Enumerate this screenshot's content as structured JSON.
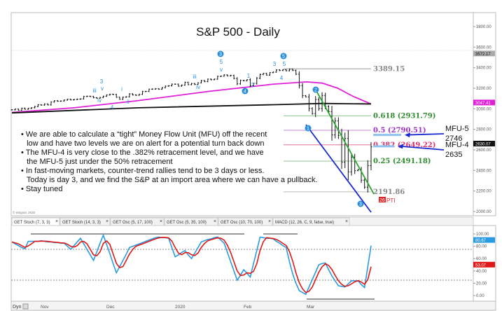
{
  "chart_data": [
    {
      "type": "bar",
      "style": "ohlc",
      "title": "S&P 500 - Daily",
      "ylim": [
        2000,
        3900
      ],
      "y_ticks": [
        "3800.00",
        "3600.00",
        "3400.00",
        "3200.00",
        "3000.00",
        "2800.00",
        "2600.00",
        "2400.00",
        "2200.00",
        "2000.00"
      ],
      "x_first_date": "2019-10-16",
      "x_last_date": "2020-03-26",
      "closes": [
        2990,
        2997,
        2986,
        3006,
        2996,
        3004,
        3010,
        3022,
        3039,
        3036,
        3047,
        3038,
        3066,
        3078,
        3074,
        3076,
        3085,
        3093,
        3087,
        3091,
        3094,
        3097,
        3120,
        3122,
        3120,
        3108,
        3103,
        3110,
        3122,
        3134,
        3141,
        3140,
        3113,
        3093,
        3113,
        3117,
        3145,
        3135,
        3132,
        3141,
        3168,
        3169,
        3191,
        3192,
        3195,
        3191,
        3205,
        3221,
        3224,
        3240,
        3240,
        3221,
        3231,
        3258,
        3235,
        3246,
        3237,
        3253,
        3275,
        3265,
        3289,
        3283,
        3289,
        3316,
        3318,
        3330,
        3321,
        3325,
        3295,
        3243,
        3276,
        3273,
        3283,
        3226,
        3248,
        3298,
        3334,
        3345,
        3328,
        3352,
        3357,
        3379,
        3373,
        3380,
        3370,
        3386,
        3373,
        3337,
        3226,
        3128,
        3116,
        3003,
        2954,
        3090,
        3003,
        3130,
        3023,
        2972,
        2746,
        2882,
        2741,
        2480,
        2711,
        2386,
        2529,
        2398,
        2409,
        2305,
        2237,
        2447,
        2630
      ],
      "moving_averages": [
        {
          "color": "#e020d8",
          "points": [
            [
              "2019-10-16",
              2965
            ],
            [
              "2019-11-13",
              3010
            ],
            [
              "2019-12-12",
              3080
            ],
            [
              "2020-01-13",
              3170
            ],
            [
              "2020-02-11",
              3240
            ],
            [
              "2020-02-26",
              3262
            ],
            [
              "2020-03-04",
              3250
            ],
            [
              "2020-03-11",
              3200
            ],
            [
              "2020-03-18",
              3120
            ],
            [
              "2020-03-26",
              3047
            ]
          ]
        },
        {
          "color": "#111111",
          "points": [
            [
              "2019-10-16",
              2960
            ],
            [
              "2019-12-12",
              3010
            ],
            [
              "2020-02-11",
              3040
            ],
            [
              "2020-03-04",
              3052
            ],
            [
              "2020-03-26",
              3047
            ]
          ]
        }
      ],
      "price_badges": [
        {
          "label": "3572.17",
          "value": 3572.17,
          "bg": "#aaaaaa",
          "fg": "#111111"
        },
        {
          "label": "3047.41",
          "value": 3047.41,
          "bg": "#e020d8",
          "fg": "#ffffff"
        },
        {
          "label": "2630.07",
          "value": 2630.07,
          "bg": "#111111",
          "fg": "#ffffff"
        }
      ],
      "levels": [
        {
          "label": "3389.15",
          "value": 3389.15,
          "color": "#999999",
          "text_color": "#888888"
        },
        {
          "label": "0.618 (2931.79)",
          "value": 2931.79,
          "color": "#8fc28f",
          "text_color": "#2e8b2e"
        },
        {
          "label": "0.5 (2790.51)",
          "value": 2790.51,
          "color": "#c888d8",
          "text_color": "#a030c8"
        },
        {
          "label": "0.382 (2649.22)",
          "value": 2649.22,
          "color": "#e07090",
          "text_color": "#e0306a"
        },
        {
          "label": "0.25 (2491.18)",
          "value": 2491.18,
          "color": "#8fc28f",
          "text_color": "#2e8b2e"
        },
        {
          "label": "2191.86",
          "value": 2191.86,
          "color": "#bbbbbb",
          "text_color": "#888888"
        }
      ],
      "mfu": [
        {
          "name": "MFU-5",
          "value": "2746",
          "level": 2746
        },
        {
          "name": "MFU-4",
          "value": "2635",
          "level": 2635
        }
      ],
      "wave_circles": [
        "3",
        "5",
        "4",
        "2",
        "1",
        "3"
      ],
      "wave_labels": [
        "3",
        "v",
        "iii",
        "iv",
        "i",
        "ii",
        "4",
        "iii",
        "iv",
        "5",
        "v",
        "1",
        "2",
        "3",
        "5",
        "4"
      ],
      "tag": {
        "box": "26",
        "text": "PTI",
        "color": "#e02020"
      },
      "copyright": "© eSignal, 2020"
    },
    {
      "type": "line",
      "title": "GET Stoch (7, 3, 3)",
      "ylim": [
        0,
        100
      ],
      "y_ticks": [
        "100.00",
        "80.00",
        "60.00",
        "40.00",
        "20.00",
        "0.00"
      ],
      "reference_lines": [
        75,
        25
      ],
      "x_labels": [
        "Nov",
        "Dec",
        "2020",
        "Feb",
        "Mar"
      ],
      "series": [
        {
          "color": "#2a9be0",
          "values": [
            87,
            84,
            81,
            78,
            76,
            88,
            88,
            88,
            88,
            89,
            88,
            87,
            87,
            86,
            86,
            85,
            85,
            80,
            75,
            81,
            87,
            93,
            84,
            75,
            66,
            57,
            71,
            85,
            98,
            83,
            68,
            52,
            37,
            47,
            57,
            67,
            78,
            80,
            82,
            84,
            86,
            88,
            90,
            92,
            94,
            95,
            94,
            94,
            93,
            78,
            63,
            66,
            70,
            73,
            66,
            60,
            69,
            78,
            87,
            89,
            91,
            92,
            94,
            95,
            90,
            85,
            70,
            55,
            40,
            25,
            33,
            42,
            36,
            30,
            52,
            73,
            95,
            94,
            93,
            93,
            92,
            88,
            85,
            81,
            78,
            55,
            35,
            20,
            8,
            5,
            2,
            14,
            26,
            38,
            50,
            52,
            53,
            42,
            32,
            24,
            16,
            15,
            14,
            19,
            24,
            24,
            24,
            18,
            13,
            47,
            81
          ]
        },
        {
          "color": "#e01818",
          "smoothing": 3
        }
      ],
      "value_badges": [
        {
          "label": "80.67",
          "value": 80.67,
          "bg": "#2a9be0"
        },
        {
          "label": "53.07",
          "value": 53.07,
          "bg": "#e01818"
        }
      ]
    }
  ],
  "notes": [
    "• We are able to calculate a “tight” Money Flow Unit (MFU) off the recent",
    "  low and have two levels we are on alert for a potential turn back down",
    "• The MFU-4 is very close to the .382% retracement level, and we have",
    "  the MFU-5 just under the 50% retracement",
    "• In fast-moving markets, counter-trend rallies tend to be 3 days or less.",
    "  Today is day 3, and we find the S&P at an import area where we can have a pullback.",
    "• Stay tuned"
  ],
  "tabs": [
    {
      "label": "GET Stoch (7, 3, 3)"
    },
    {
      "label": "GET Stoch (14, 3, 3)"
    },
    {
      "label": "GET Osc (5, 17, 100)"
    },
    {
      "label": "GET Osc (5, 35, 100)"
    },
    {
      "label": "GET Osc (10, 70, 100)"
    },
    {
      "label": "MACD (12, 26, C, 9, false, true)"
    }
  ],
  "tab_close": "×",
  "bottom_bar": {
    "dyn_label": "Dyn"
  }
}
